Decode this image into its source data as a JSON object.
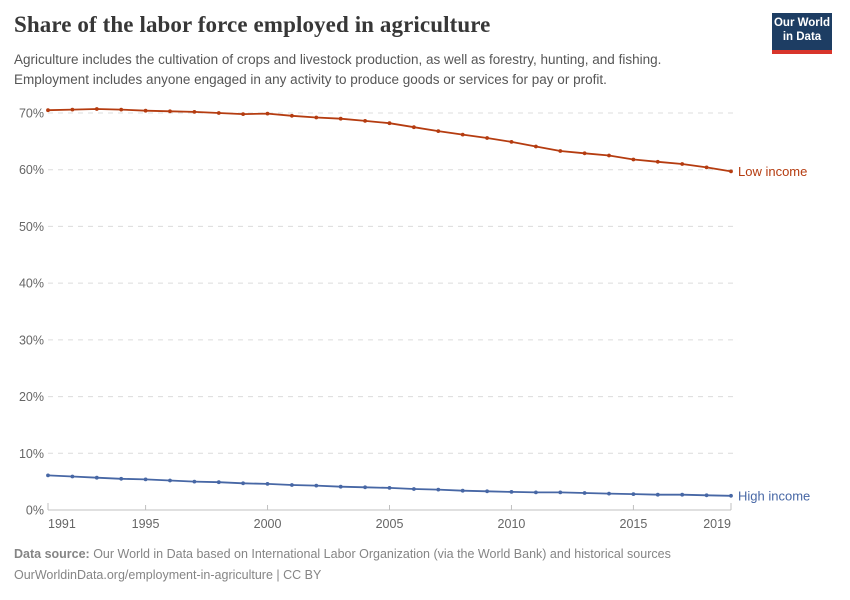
{
  "header": {
    "title": "Share of the labor force employed in agriculture",
    "subtitle_line1": "Agriculture includes the cultivation of crops and livestock production, as well as forestry, hunting, and fishing.",
    "subtitle_line2": "Employment includes anyone engaged in any activity to produce goods or services for pay or profit.",
    "logo_line1": "Our World",
    "logo_line2": "in Data",
    "logo_bg_color": "#1d3d63",
    "logo_stripe_color": "#d8352b"
  },
  "chart_data": {
    "type": "line",
    "title": "Share of the labor force employed in agriculture",
    "x": [
      1991,
      1992,
      1993,
      1994,
      1995,
      1996,
      1997,
      1998,
      1999,
      2000,
      2001,
      2002,
      2003,
      2004,
      2005,
      2006,
      2007,
      2008,
      2009,
      2010,
      2011,
      2012,
      2013,
      2014,
      2015,
      2016,
      2017,
      2018,
      2019
    ],
    "series": [
      {
        "name": "Low income",
        "color": "#b53c10",
        "values": [
          70.5,
          70.6,
          70.7,
          70.6,
          70.4,
          70.3,
          70.2,
          70.0,
          69.8,
          69.9,
          69.5,
          69.2,
          69.0,
          68.6,
          68.2,
          67.5,
          66.8,
          66.2,
          65.6,
          64.9,
          64.1,
          63.3,
          62.9,
          62.5,
          61.8,
          61.4,
          61.0,
          60.4,
          59.7
        ]
      },
      {
        "name": "High income",
        "color": "#4767a5",
        "values": [
          6.1,
          5.9,
          5.7,
          5.5,
          5.4,
          5.2,
          5.0,
          4.9,
          4.7,
          4.6,
          4.4,
          4.3,
          4.1,
          4.0,
          3.9,
          3.7,
          3.6,
          3.4,
          3.3,
          3.2,
          3.1,
          3.1,
          3.0,
          2.9,
          2.8,
          2.7,
          2.7,
          2.6,
          2.5
        ]
      }
    ],
    "ylim": [
      0,
      70
    ],
    "yticks": [
      0,
      10,
      20,
      30,
      40,
      50,
      60,
      70
    ],
    "ytick_suffix": "%",
    "xticks": [
      1991,
      1995,
      2000,
      2005,
      2010,
      2015,
      2019
    ],
    "grid": "horizontal-dashed",
    "legend_position": "end-of-line"
  },
  "footer": {
    "source_label": "Data source:",
    "source_text": " Our World in Data based on International Labor Organization (via the World Bank) and historical sources",
    "link_line": "OurWorldinData.org/employment-in-agriculture | CC BY"
  }
}
